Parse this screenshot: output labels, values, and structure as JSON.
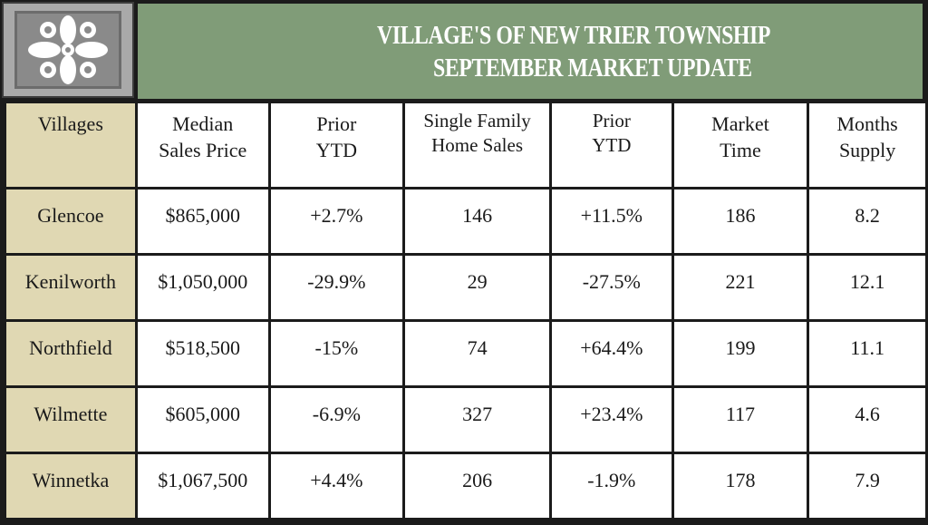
{
  "title": {
    "line1": "VILLAGE'S OF NEW TRIER TOWNSHIP",
    "line2": "SEPTEMBER MARKET UPDATE"
  },
  "logo": {
    "icon": "decorative-quatrefoil-logo"
  },
  "colors": {
    "title_bg": "#809c78",
    "village_col_bg": "#e0d8b3",
    "border": "#1b1b1b"
  },
  "table": {
    "headers": [
      {
        "line1": "Villages",
        "line2": ""
      },
      {
        "line1": "Median",
        "line2": "Sales Price"
      },
      {
        "line1": "Prior",
        "line2": "YTD"
      },
      {
        "line1": "Single Family",
        "line2": "Home Sales"
      },
      {
        "line1": "Prior",
        "line2": "YTD"
      },
      {
        "line1": "Market",
        "line2": "Time"
      },
      {
        "line1": "Months",
        "line2": "Supply"
      }
    ],
    "rows": [
      {
        "village": "Glencoe",
        "median": "$865,000",
        "prior_ytd_price": "+2.7%",
        "sales": "146",
        "prior_ytd_sales": "+11.5%",
        "market_time": "186",
        "months_supply": "8.2"
      },
      {
        "village": "Kenilworth",
        "median": "$1,050,000",
        "prior_ytd_price": "-29.9%",
        "sales": "29",
        "prior_ytd_sales": "-27.5%",
        "market_time": "221",
        "months_supply": "12.1"
      },
      {
        "village": "Northfield",
        "median": "$518,500",
        "prior_ytd_price": "-15%",
        "sales": "74",
        "prior_ytd_sales": "+64.4%",
        "market_time": "199",
        "months_supply": "11.1"
      },
      {
        "village": "Wilmette",
        "median": "$605,000",
        "prior_ytd_price": "-6.9%",
        "sales": "327",
        "prior_ytd_sales": "+23.4%",
        "market_time": "117",
        "months_supply": "4.6"
      },
      {
        "village": "Winnetka",
        "median": "$1,067,500",
        "prior_ytd_price": "+4.4%",
        "sales": "206",
        "prior_ytd_sales": "-1.9%",
        "market_time": "178",
        "months_supply": "7.9"
      }
    ]
  }
}
